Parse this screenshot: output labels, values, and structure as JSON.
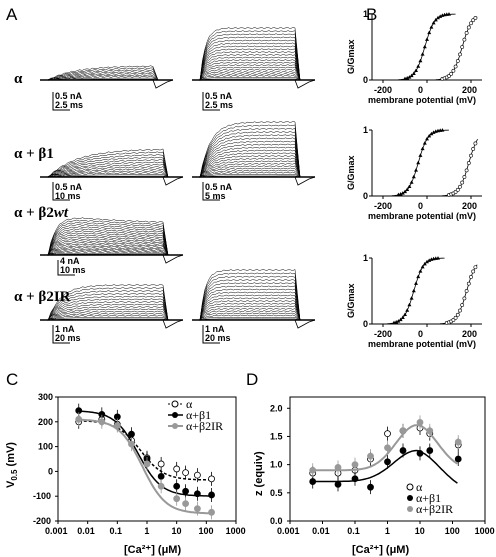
{
  "panels": {
    "A": "A",
    "B": "B",
    "C": "C",
    "D": "D"
  },
  "rows": [
    {
      "label": "α",
      "scale_left": [
        "0.5 nA",
        "2.5 ms"
      ],
      "scale_right": [
        "0.5 nA",
        "2.5 ms"
      ]
    },
    {
      "label": "α + β1",
      "scale_left": [
        "0.5 nA",
        "10 ms"
      ],
      "scale_right": [
        "0.5 nA",
        "5 ms"
      ]
    },
    {
      "label_main": "α + β2",
      "label_suffix": "wt",
      "scale_left": [
        "4 nA",
        "10 ms"
      ],
      "scale_right": null
    },
    {
      "label": "α + β2IR",
      "scale_left": [
        "1 nA",
        "20 ms"
      ],
      "scale_right": [
        "1 nA",
        "20 ms"
      ]
    }
  ],
  "gv_plots": {
    "ylabel": "G/Gmax",
    "xlabel": "membrane potential (mV)",
    "xticks": [
      "-200",
      "0",
      "200"
    ],
    "yticks": [
      "0",
      "1"
    ]
  },
  "chart_data": [
    {
      "id": "C",
      "type": "line",
      "xscale": "log",
      "xlabel": "[Ca²⁺] (μM)",
      "ylabel": "V0.5 (mV)",
      "ylabel_main": "V",
      "ylabel_sub": "0.5",
      "ylabel_unit": " (mV)",
      "xticks": [
        "0.001",
        "0.01",
        "0.1",
        "1",
        "10",
        "100",
        "1000"
      ],
      "yticks": [
        "-200",
        "-100",
        "0",
        "100",
        "200",
        "300"
      ],
      "xlim": [
        0.001,
        1000
      ],
      "ylim": [
        -200,
        300
      ],
      "x": [
        0.005,
        0.03,
        0.1,
        0.3,
        1,
        3,
        10,
        20,
        50,
        150
      ],
      "series": [
        {
          "name": "α",
          "color": "#ffffff",
          "values": [
            200,
            210,
            190,
            125,
            55,
            30,
            10,
            -5,
            -15,
            -30
          ]
        },
        {
          "name": "α+β1",
          "color": "#000000",
          "values": [
            245,
            230,
            220,
            150,
            50,
            -20,
            -60,
            -80,
            -90,
            -95
          ]
        },
        {
          "name": "α+β2IR",
          "color": "#999999",
          "values": [
            210,
            200,
            185,
            110,
            30,
            -60,
            -110,
            -130,
            -150,
            -165
          ]
        }
      ]
    },
    {
      "id": "D",
      "type": "line",
      "xscale": "log",
      "xlabel": "[Ca²⁺] (μM)",
      "ylabel": "z (equiv)",
      "xticks": [
        "0.001",
        "0.01",
        "0.1",
        "1",
        "10",
        "100",
        "1000"
      ],
      "yticks": [
        "0.0",
        "0.5",
        "1.0",
        "1.5",
        "2.0"
      ],
      "xlim": [
        0.001,
        1000
      ],
      "ylim": [
        0,
        2.2
      ],
      "x": [
        0.005,
        0.03,
        0.1,
        0.3,
        1,
        3,
        10,
        20,
        150
      ],
      "series": [
        {
          "name": "α",
          "color": "#ffffff",
          "values": [
            0.85,
            0.85,
            0.9,
            1.1,
            1.55,
            1.6,
            1.65,
            1.55,
            1.35
          ]
        },
        {
          "name": "α+β1",
          "color": "#000000",
          "values": [
            0.7,
            0.65,
            0.75,
            0.6,
            1.05,
            1.25,
            1.2,
            1.25,
            1.1
          ]
        },
        {
          "name": "α+β2IR",
          "color": "#999999",
          "values": [
            0.9,
            0.95,
            1.0,
            1.15,
            1.3,
            1.6,
            1.75,
            1.6,
            1.4
          ]
        }
      ]
    }
  ]
}
